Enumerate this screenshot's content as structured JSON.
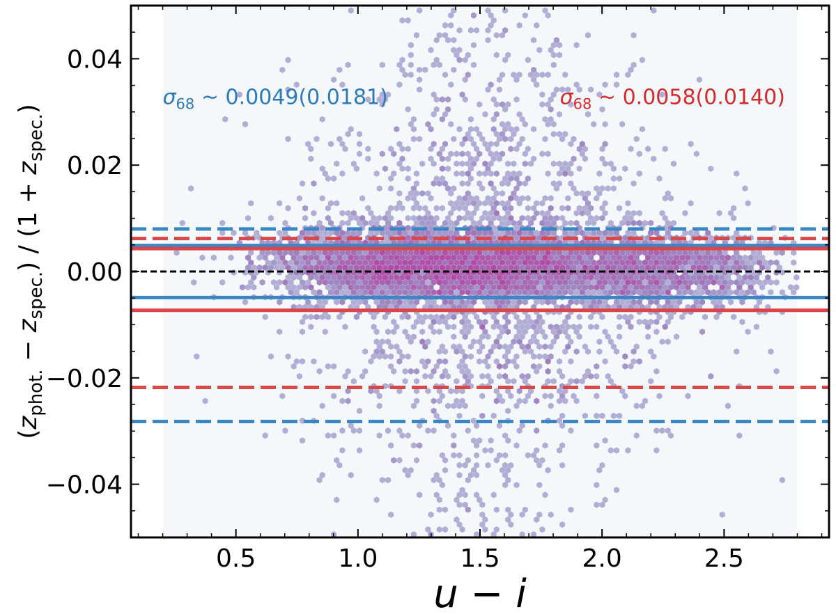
{
  "chart_data": {
    "type": "scatter",
    "subtype": "hexbin",
    "xlabel": "u − i",
    "ylabel": "(z_phot. − z_spec.) / (1 + z_spec.)",
    "xlim": [
      0.07,
      2.93
    ],
    "ylim": [
      -0.05,
      0.05
    ],
    "xticks": [
      0.5,
      1.0,
      1.5,
      2.0,
      2.5
    ],
    "xtick_labels": [
      "0.5",
      "1.0",
      "1.5",
      "2.0",
      "2.5"
    ],
    "yticks": [
      0.04,
      0.02,
      0.0,
      -0.02,
      -0.04
    ],
    "ytick_labels": [
      "0.04",
      "0.02",
      "0.00",
      "−0.02",
      "−0.04"
    ],
    "hexbin_extent_x": [
      0.2,
      2.8
    ],
    "density": {
      "description": "points concentrated near 0 between u-i 0.8 and 2.5",
      "clusters": [
        {
          "x": 1.05,
          "y": 0.0015,
          "weight": 1.0
        },
        {
          "x": 1.35,
          "y": 0.0008,
          "weight": 1.0
        },
        {
          "x": 1.7,
          "y": 0.001,
          "weight": 0.7
        },
        {
          "x": 2.25,
          "y": 0.0005,
          "weight": 0.8
        }
      ]
    },
    "hlines": [
      {
        "name": "blue-upper-dashed",
        "y": 0.008,
        "color": "#3b87c4",
        "style": "dashed"
      },
      {
        "name": "red-upper-dashed",
        "y": 0.0062,
        "color": "#d94848",
        "style": "dashed"
      },
      {
        "name": "blue-upper-solid",
        "y": 0.0049,
        "color": "#3b87c4",
        "style": "solid"
      },
      {
        "name": "red-upper-solid",
        "y": 0.0043,
        "color": "#d94848",
        "style": "solid"
      },
      {
        "name": "zero-line",
        "y": 0.0,
        "color": "#000000",
        "style": "dashed"
      },
      {
        "name": "blue-lower-solid",
        "y": -0.0049,
        "color": "#3b87c4",
        "style": "solid"
      },
      {
        "name": "red-lower-solid",
        "y": -0.0073,
        "color": "#d94848",
        "style": "solid"
      },
      {
        "name": "red-lower-dashed",
        "y": -0.0218,
        "color": "#d94848",
        "style": "dashed"
      },
      {
        "name": "blue-lower-dashed",
        "y": -0.0282,
        "color": "#3b87c4",
        "style": "dashed"
      }
    ],
    "annotations": [
      {
        "name": "blue-sigma",
        "symbol": "σ",
        "subscript": "68",
        "rest": " ~ 0.0049(0.0181)",
        "color": "#2d7ab8",
        "x": 0.2,
        "y": 0.0315,
        "anchor": "start"
      },
      {
        "name": "red-sigma",
        "symbol": "σ",
        "subscript": "68",
        "rest": " ~ 0.0058(0.0140)",
        "color": "#d42a2a",
        "x": 2.75,
        "y": 0.0315,
        "anchor": "end"
      }
    ],
    "colors": {
      "background_hex": "#f4f8fb",
      "low_density": "#c5d2e8",
      "mid_density": "#9e8bc2",
      "high_density": "#b04ba6"
    }
  }
}
